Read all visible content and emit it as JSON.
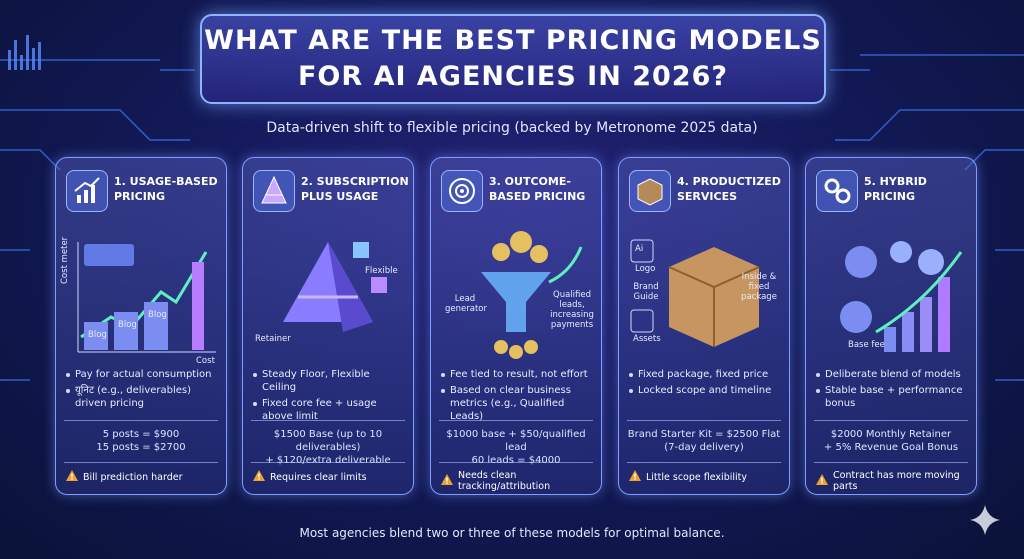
{
  "header": {
    "title_lines": [
      "WHAT ARE THE BEST PRICING MODELS",
      "FOR AI AGENCIES IN 2026?"
    ],
    "subtitle": "Data-driven shift to flexible pricing (backed by Metronome 2025 data)"
  },
  "cards": [
    {
      "title": "1. USAGE-BASED PRICING",
      "illustration_labels": [
        "Cost meter",
        "Blog",
        "Blog",
        "Blog",
        "Cost"
      ],
      "bullets": [
        "Pay for actual consumption",
        "यूनिट (e.g., deliverables) driven pricing"
      ],
      "example": [
        "5 posts = $900",
        "15 posts = $2700"
      ],
      "warning": "Bill prediction harder"
    },
    {
      "title": "2. SUBSCRIPTION PLUS USAGE",
      "illustration_labels": [
        "Flexible",
        "Retainer"
      ],
      "bullets": [
        "Steady Floor, Flexible Ceiling",
        "Fixed core fee + usage above limit"
      ],
      "example": [
        "$1500 Base (up to 10 deliverables)",
        "+ $120/extra deliverable"
      ],
      "warning": "Requires clear limits"
    },
    {
      "title": "3. OUTCOME-BASED PRICING",
      "illustration_labels": [
        "Lead generator",
        "Qualified leads, increasing payments"
      ],
      "bullets": [
        "Fee tied to result, not effort",
        "Based on clear business metrics (e.g., Qualified Leads)"
      ],
      "example": [
        "$1000 base + $50/qualified lead",
        "60 leads = $4000"
      ],
      "warning": "Needs clean tracking/attribution"
    },
    {
      "title": "4. PRODUCTIZED SERVICES",
      "illustration_labels": [
        "Ai",
        "Logo",
        "Brand Guide",
        "Assets",
        "Inside & fixed package"
      ],
      "bullets": [
        "Fixed package, fixed price",
        "Locked scope and timeline"
      ],
      "example": [
        "Brand Starter Kit = $2500 Flat",
        "(7-day delivery)"
      ],
      "warning": "Little scope flexibility"
    },
    {
      "title": "5. HYBRID PRICING",
      "illustration_labels": [
        "Base fee"
      ],
      "bullets": [
        "Deliberate blend of models",
        "Stable base + performance bonus"
      ],
      "example": [
        "$2000 Monthly Retainer",
        "+ 5% Revenue Goal Bonus"
      ],
      "warning": "Contract has more moving parts"
    }
  ],
  "footer": "Most agencies blend two or three of these models for optimal balance."
}
